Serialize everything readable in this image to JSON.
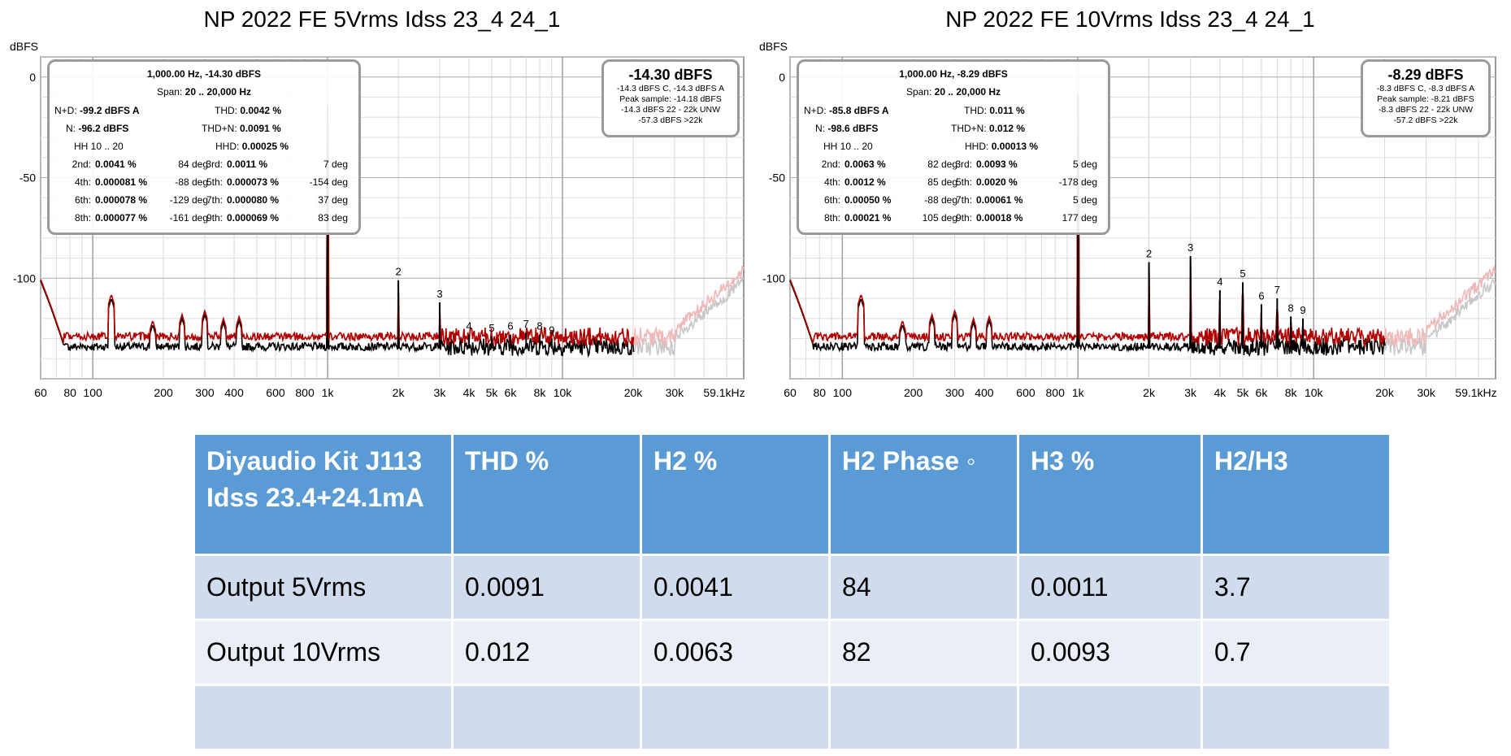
{
  "y_axis_unit": "dBFS",
  "chart_data": [
    {
      "type": "line",
      "title": "NP 2022 FE 5Vrms Idss 23_4 24_1",
      "ylabel": "dBFS",
      "xscale": "log",
      "xlim": [
        60,
        59100
      ],
      "ylim": [
        -150,
        10
      ],
      "y_ticks": [
        "0",
        "-50",
        "-100"
      ],
      "x_ticks": [
        "60",
        "80",
        "100",
        "200",
        "300",
        "400",
        "600",
        "800",
        "1k",
        "2k",
        "3k",
        "4k",
        "5k",
        "6k",
        "8k",
        "10k",
        "20k",
        "30k",
        "59.1kHz"
      ],
      "series": [
        {
          "color": "#b00000",
          "noise_floor": -129
        },
        {
          "color": "#000000",
          "noise_floor": -134
        }
      ],
      "fundamental": {
        "x": 1000,
        "y": -14.3
      },
      "harmonics": [
        {
          "label": "1",
          "x": 1000,
          "y": -14.3
        },
        {
          "label": "2",
          "x": 2000,
          "y": -101
        },
        {
          "label": "3",
          "x": 3000,
          "y": -112
        },
        {
          "label": "4",
          "x": 4000,
          "y": -128
        },
        {
          "label": "5",
          "x": 5000,
          "y": -129
        },
        {
          "label": "6",
          "x": 6000,
          "y": -128
        },
        {
          "label": "7",
          "x": 7000,
          "y": -127
        },
        {
          "label": "8",
          "x": 8000,
          "y": -128
        },
        {
          "label": "9",
          "x": 9000,
          "y": -130
        }
      ],
      "info": {
        "header1": "1,000.00 Hz, -14.30 dBFS",
        "span_label": "Span:",
        "span_value": "20 .. 20,000 Hz",
        "nd_label": "N+D:",
        "nd_value": "-99.2 dBFS A",
        "thd_label": "THD:",
        "thd_value": "0.0042 %",
        "n_label": "N:",
        "n_value": "-96.2 dBFS",
        "thdn_label": "THD+N:",
        "thdn_value": "0.0091 %",
        "hh_label": "HH 10 .. 20",
        "hhd_label": "HHD:",
        "hhd_value": "0.00025 %",
        "rows": [
          {
            "l1": "2nd:",
            "v1": "0.0041 %",
            "d1": "84 deg",
            "l2": "3rd:",
            "v2": "0.0011 %",
            "d2": "7 deg"
          },
          {
            "l1": "4th:",
            "v1": "0.000081 %",
            "d1": "-88 deg",
            "l2": "5th:",
            "v2": "0.000073 %",
            "d2": "-154 deg"
          },
          {
            "l1": "6th:",
            "v1": "0.000078 %",
            "d1": "-129 deg",
            "l2": "7th:",
            "v2": "0.000080 %",
            "d2": "37 deg"
          },
          {
            "l1": "8th:",
            "v1": "0.000077 %",
            "d1": "-161 deg",
            "l2": "9th:",
            "v2": "0.000069 %",
            "d2": "83 deg"
          }
        ]
      },
      "peak": {
        "value": "-14.30 dBFS",
        "lines": [
          "-14.3 dBFS C, -14.3 dBFS A",
          "Peak sample: -14.18 dBFS",
          "-14.3 dBFS 22 - 22k UNW",
          "-57.3 dBFS >22k"
        ]
      }
    },
    {
      "type": "line",
      "title": "NP 2022 FE 10Vrms Idss 23_4 24_1",
      "ylabel": "dBFS",
      "xscale": "log",
      "xlim": [
        60,
        59100
      ],
      "ylim": [
        -150,
        10
      ],
      "y_ticks": [
        "0",
        "-50",
        "-100"
      ],
      "x_ticks": [
        "60",
        "80",
        "100",
        "200",
        "300",
        "400",
        "600",
        "800",
        "1k",
        "2k",
        "3k",
        "4k",
        "5k",
        "6k",
        "8k",
        "10k",
        "20k",
        "30k",
        "59.1kHz"
      ],
      "series": [
        {
          "color": "#b00000",
          "noise_floor": -129
        },
        {
          "color": "#000000",
          "noise_floor": -134
        }
      ],
      "fundamental": {
        "x": 1000,
        "y": -8.29
      },
      "harmonics": [
        {
          "label": "1",
          "x": 1000,
          "y": -8.29
        },
        {
          "label": "2",
          "x": 2000,
          "y": -92
        },
        {
          "label": "3",
          "x": 3000,
          "y": -89
        },
        {
          "label": "4",
          "x": 4000,
          "y": -106
        },
        {
          "label": "5",
          "x": 5000,
          "y": -102
        },
        {
          "label": "6",
          "x": 6000,
          "y": -113
        },
        {
          "label": "7",
          "x": 7000,
          "y": -110
        },
        {
          "label": "8",
          "x": 8000,
          "y": -119
        },
        {
          "label": "9",
          "x": 9000,
          "y": -120
        }
      ],
      "info": {
        "header1": "1,000.00 Hz, -8.29 dBFS",
        "span_label": "Span:",
        "span_value": "20 .. 20,000 Hz",
        "nd_label": "N+D:",
        "nd_value": "-85.8 dBFS A",
        "thd_label": "THD:",
        "thd_value": "0.011 %",
        "n_label": "N:",
        "n_value": "-98.6 dBFS",
        "thdn_label": "THD+N:",
        "thdn_value": "0.012 %",
        "hh_label": "HH 10 .. 20",
        "hhd_label": "HHD:",
        "hhd_value": "0.00013 %",
        "rows": [
          {
            "l1": "2nd:",
            "v1": "0.0063 %",
            "d1": "82 deg",
            "l2": "3rd:",
            "v2": "0.0093 %",
            "d2": "5 deg"
          },
          {
            "l1": "4th:",
            "v1": "0.0012 %",
            "d1": "85 deg",
            "l2": "5th:",
            "v2": "0.0020 %",
            "d2": "-178 deg"
          },
          {
            "l1": "6th:",
            "v1": "0.00050 %",
            "d1": "-88 deg",
            "l2": "7th:",
            "v2": "0.00061 %",
            "d2": "5 deg"
          },
          {
            "l1": "8th:",
            "v1": "0.00021 %",
            "d1": "105 deg",
            "l2": "9th:",
            "v2": "0.00018 %",
            "d2": "177 deg"
          }
        ]
      },
      "peak": {
        "value": "-8.29 dBFS",
        "lines": [
          "-8.3 dBFS C, -8.3 dBFS A",
          "Peak sample: -8.21 dBFS",
          "-8.3 dBFS 22 - 22k UNW",
          "-57.2 dBFS >22k"
        ]
      }
    }
  ],
  "table": {
    "headers": [
      "Diyaudio Kit J113 Idss 23.4+24.1mA",
      "THD %",
      "H2 %",
      "H2 Phase ◦",
      "H3 %",
      "H2/H3"
    ],
    "rows": [
      [
        "Output 5Vrms",
        "0.0091",
        "0.0041",
        "84",
        "0.0011",
        "3.7"
      ],
      [
        "Output 10Vrms",
        "0.012",
        "0.0063",
        "82",
        "0.0093",
        "0.7"
      ],
      [
        "",
        "",
        "",
        "",
        "",
        ""
      ]
    ]
  }
}
